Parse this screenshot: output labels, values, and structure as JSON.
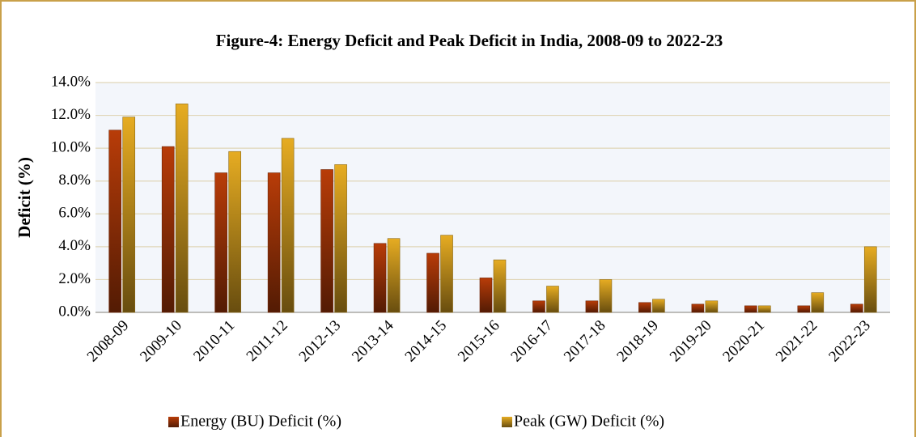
{
  "chart_data": {
    "type": "bar",
    "title": "Figure-4: Energy Deficit and Peak Deficit in India, 2008-09 to 2022-23",
    "ylabel": "Deficit (%)",
    "categories": [
      "2008-09",
      "2009-10",
      "2010-11",
      "2011-12",
      "2012-13",
      "2013-14",
      "2014-15",
      "2015-16",
      "2016-17",
      "2017-18",
      "2018-19",
      "2019-20",
      "2020-21",
      "2021-22",
      "2022-23"
    ],
    "series": [
      {
        "name": "Energy (BU) Deficit (%)",
        "color": "#b83c08",
        "values": [
          11.1,
          10.1,
          8.5,
          8.5,
          8.7,
          4.2,
          3.6,
          2.1,
          0.7,
          0.7,
          0.6,
          0.5,
          0.4,
          0.4,
          0.5
        ]
      },
      {
        "name": "Peak (GW) Deficit (%)",
        "color": "#e6ac22",
        "values": [
          11.9,
          12.7,
          9.8,
          10.6,
          9.0,
          4.5,
          4.7,
          3.2,
          1.6,
          2.0,
          0.8,
          0.7,
          0.4,
          1.2,
          4.0
        ]
      }
    ],
    "ylim": [
      0,
      14
    ],
    "yticks": [
      {
        "value": 0,
        "label": "0.0%"
      },
      {
        "value": 2,
        "label": "2.0%"
      },
      {
        "value": 4,
        "label": "4.0%"
      },
      {
        "value": 6,
        "label": "6.0%"
      },
      {
        "value": 8,
        "label": "8.0%"
      },
      {
        "value": 10,
        "label": "10.0%"
      },
      {
        "value": 12,
        "label": "12.0%"
      },
      {
        "value": 14,
        "label": "14.0%"
      }
    ],
    "grid": true
  }
}
